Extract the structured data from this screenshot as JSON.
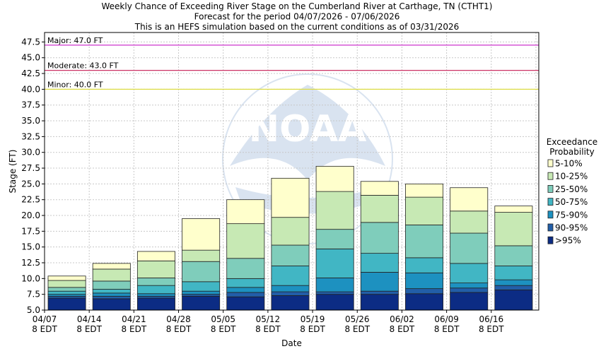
{
  "chart_data": {
    "type": "bar",
    "title": [
      "Weekly Chance of Exceeding River Stage on the Cumberland River at Carthage, TN (CTHT1)",
      "Forecast for the period 04/07/2026 - 07/06/2026",
      "This is an HEFS simulation based on the current conditions as of 03/31/2026"
    ],
    "xlabel": "Date",
    "ylabel": "Stage (FT)",
    "ylim": [
      5.0,
      49.0
    ],
    "yticks": [
      "5.0",
      "7.5",
      "10.0",
      "12.5",
      "15.0",
      "17.5",
      "20.0",
      "22.5",
      "25.0",
      "27.5",
      "30.0",
      "32.5",
      "35.0",
      "37.5",
      "40.0",
      "42.5",
      "45.0",
      "47.5"
    ],
    "xtick_labels": [
      [
        "04/07",
        "8 EDT"
      ],
      [
        "04/14",
        "8 EDT"
      ],
      [
        "04/21",
        "8 EDT"
      ],
      [
        "04/28",
        "8 EDT"
      ],
      [
        "05/05",
        "8 EDT"
      ],
      [
        "05/12",
        "8 EDT"
      ],
      [
        "05/19",
        "8 EDT"
      ],
      [
        "05/26",
        "8 EDT"
      ],
      [
        "06/02",
        "8 EDT"
      ],
      [
        "06/09",
        "8 EDT"
      ],
      [
        "06/16",
        "8 EDT"
      ]
    ],
    "grid": true,
    "watermark": "NOAA",
    "legend": {
      "title": [
        "Exceedance",
        "Probability"
      ],
      "placement": "right",
      "entries": [
        {
          "label": "5-10%",
          "color": "#ffffcc"
        },
        {
          "label": "10-25%",
          "color": "#c7e9b4"
        },
        {
          "label": "25-50%",
          "color": "#7fcdbb"
        },
        {
          "label": "50-75%",
          "color": "#41b6c4"
        },
        {
          "label": "75-90%",
          "color": "#1d91c0"
        },
        {
          "label": "90-95%",
          "color": "#225ea8"
        },
        {
          "label": ">95%",
          "color": "#0c2c84"
        }
      ]
    },
    "thresholds": [
      {
        "label": "Major: 47.0 FT",
        "value": 47.0,
        "color": "#cc33cc"
      },
      {
        "label": "Moderate: 43.0 FT",
        "value": 43.0,
        "color": "#cc3366"
      },
      {
        "label": "Minor: 40.0 FT",
        "value": 40.0,
        "color": "#dddd44"
      }
    ],
    "bars": [
      {
        "boundaries": [
          6.9,
          7.2,
          7.5,
          8.0,
          8.6,
          9.7,
          10.4
        ]
      },
      {
        "boundaries": [
          6.8,
          7.2,
          7.7,
          8.3,
          9.6,
          11.5,
          12.4
        ]
      },
      {
        "boundaries": [
          6.9,
          7.2,
          7.6,
          8.9,
          10.1,
          12.8,
          14.3
        ]
      },
      {
        "boundaries": [
          7.2,
          7.5,
          8.0,
          9.5,
          12.7,
          14.5,
          19.5
        ]
      },
      {
        "boundaries": [
          7.1,
          7.8,
          8.6,
          10.0,
          13.2,
          18.7,
          22.5
        ]
      },
      {
        "boundaries": [
          7.3,
          7.9,
          8.9,
          12.0,
          15.3,
          19.7,
          25.9
        ]
      },
      {
        "boundaries": [
          7.5,
          7.9,
          10.1,
          14.7,
          17.8,
          23.8,
          27.8
        ]
      },
      {
        "boundaries": [
          7.5,
          8.0,
          11.0,
          14.0,
          18.9,
          23.2,
          25.4
        ]
      },
      {
        "boundaries": [
          7.6,
          8.4,
          10.9,
          13.3,
          18.5,
          22.9,
          25.0
        ]
      },
      {
        "boundaries": [
          7.8,
          8.5,
          9.3,
          12.4,
          17.2,
          20.7,
          24.4
        ]
      },
      {
        "boundaries": [
          8.2,
          8.9,
          9.8,
          12.0,
          15.2,
          20.5,
          21.5
        ]
      }
    ]
  }
}
